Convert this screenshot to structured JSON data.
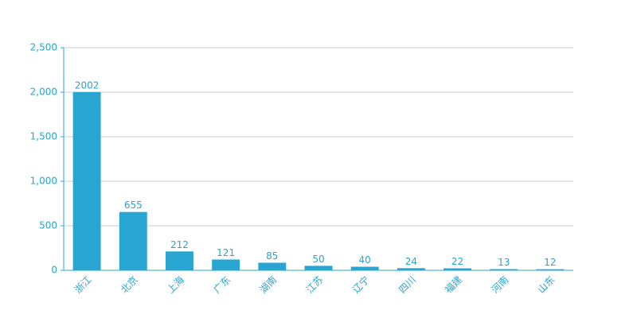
{
  "chart_data": {
    "type": "bar",
    "categories": [
      "浙江",
      "北京",
      "上海",
      "广东",
      "湖南",
      "江苏",
      "辽宁",
      "四川",
      "福建",
      "河南",
      "山东"
    ],
    "values": [
      2002,
      655,
      212,
      121,
      85,
      50,
      40,
      24,
      22,
      13,
      12
    ],
    "color": "#28a5d1",
    "ylim": [
      0,
      2500
    ],
    "yticks": [
      0,
      500,
      {
        "value": 1000,
        "label": "1,000"
      },
      {
        "value": 1500,
        "label": "1,500"
      },
      {
        "value": 2000,
        "label": "2,000"
      },
      {
        "value": 2500,
        "label": "2,500"
      }
    ],
    "grid": true
  }
}
